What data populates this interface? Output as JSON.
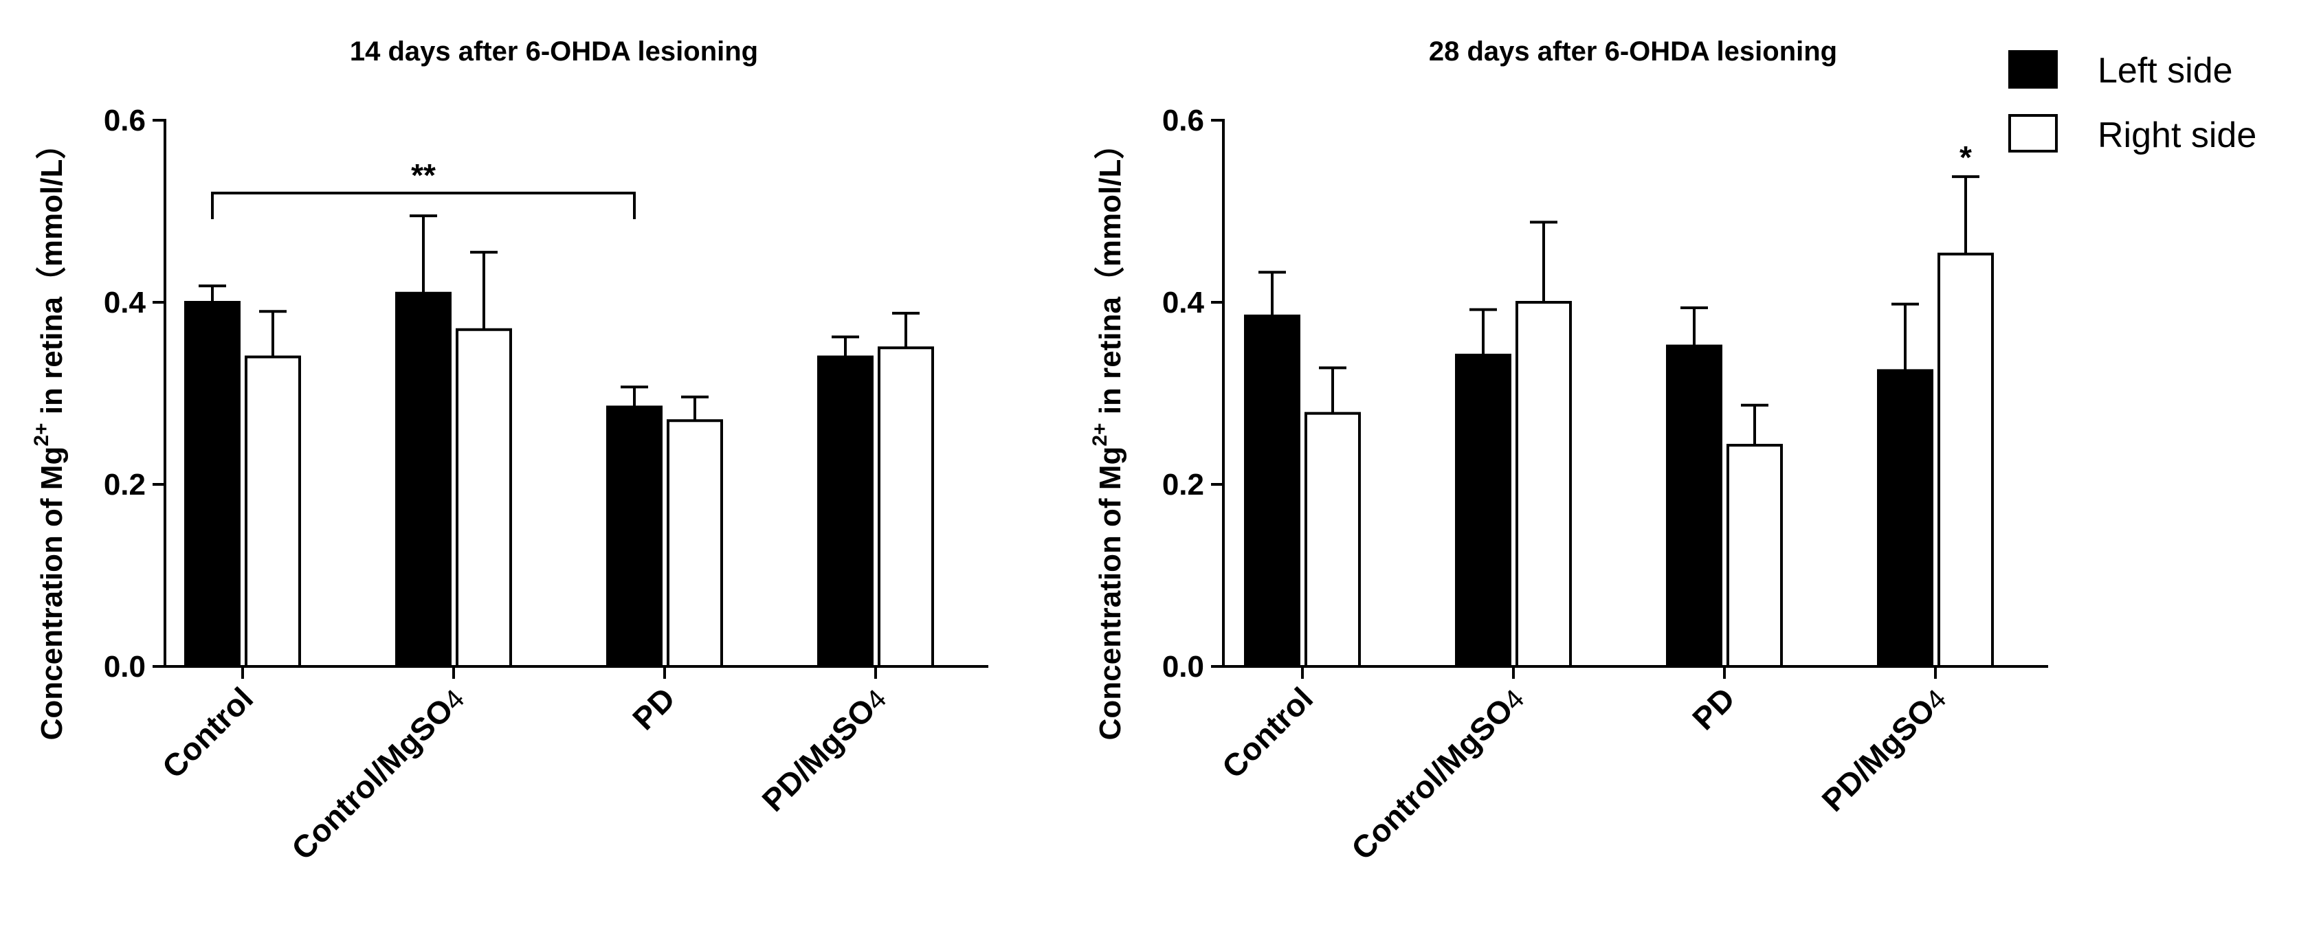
{
  "chart_data": [
    {
      "type": "bar",
      "title": "14 days after 6-OHDA lesioning",
      "ylabel": "Concentration of Mg2+ in retina (mmol/L)",
      "ylabel_parts": {
        "pre": "Concentration of Mg",
        "sup": "2+",
        "post": " in retina（mmol/L）"
      },
      "xlabel": "",
      "ylim": [
        0,
        0.6
      ],
      "yticks": [
        "0.0",
        "0.2",
        "0.4",
        "0.6"
      ],
      "categories": [
        {
          "name": "Control",
          "sub": ""
        },
        {
          "name": "Control/MgSO",
          "sub": "4"
        },
        {
          "name": "PD",
          "sub": ""
        },
        {
          "name": "PD/MgSO",
          "sub": "4"
        }
      ],
      "series": [
        {
          "name": "Left side",
          "values": [
            0.4,
            0.41,
            0.285,
            0.34
          ],
          "errors": [
            0.018,
            0.085,
            0.022,
            0.022
          ]
        },
        {
          "name": "Right side",
          "values": [
            0.34,
            0.37,
            0.27,
            0.35
          ],
          "errors": [
            0.05,
            0.085,
            0.026,
            0.038
          ]
        }
      ],
      "annotations": [
        {
          "type": "bracket",
          "label": "**",
          "from": "Control:Left side",
          "to": "PD:Left side",
          "y": 0.52
        }
      ]
    },
    {
      "type": "bar",
      "title": "28 days after 6-OHDA lesioning",
      "ylabel": "Concentration of Mg2+ in retina (mmol/L)",
      "ylabel_parts": {
        "pre": "Concentration of Mg",
        "sup": "2+",
        "post": " in retina（mmol/L）"
      },
      "xlabel": "",
      "ylim": [
        0,
        0.6
      ],
      "yticks": [
        "0.0",
        "0.2",
        "0.4",
        "0.6"
      ],
      "categories": [
        {
          "name": "Control",
          "sub": ""
        },
        {
          "name": "Control/MgSO",
          "sub": "4"
        },
        {
          "name": "PD",
          "sub": ""
        },
        {
          "name": "PD/MgSO",
          "sub": "4"
        }
      ],
      "series": [
        {
          "name": "Left side",
          "values": [
            0.385,
            0.342,
            0.352,
            0.325
          ],
          "errors": [
            0.048,
            0.05,
            0.042,
            0.073
          ]
        },
        {
          "name": "Right side",
          "values": [
            0.278,
            0.4,
            0.243,
            0.453
          ],
          "errors": [
            0.05,
            0.088,
            0.044,
            0.085
          ]
        }
      ],
      "annotations": [
        {
          "type": "star",
          "label": "*",
          "at": "PD/MgSO4:Right side"
        }
      ]
    }
  ],
  "legend": {
    "position": "top-right",
    "entries": [
      {
        "label": "Left side",
        "color": "#000000"
      },
      {
        "label": "Right side",
        "color": "#ffffff"
      }
    ]
  },
  "colors": {
    "left": "#000000",
    "right": "#ffffff",
    "stroke": "#000000"
  }
}
